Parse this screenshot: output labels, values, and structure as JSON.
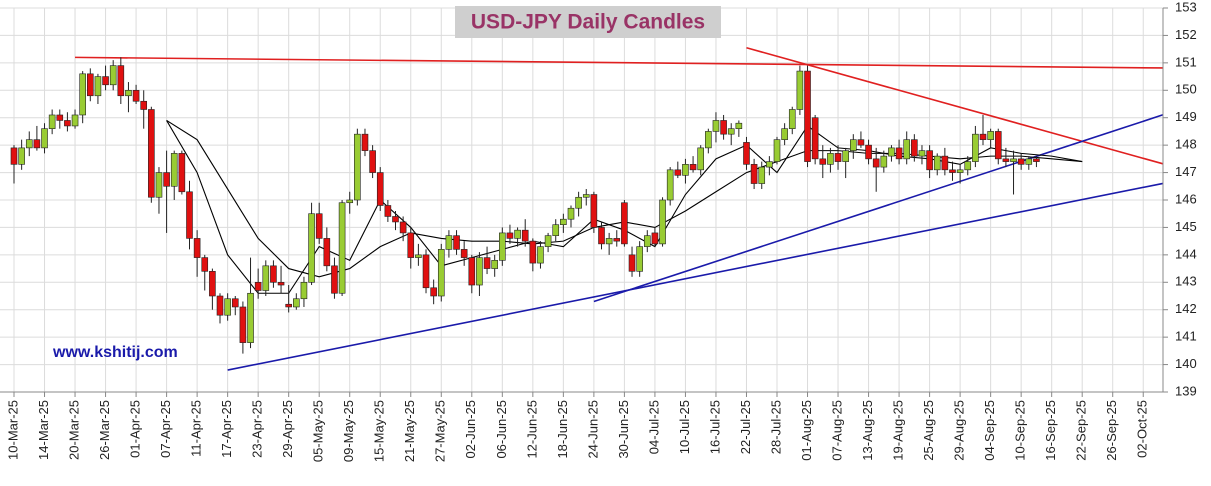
{
  "chart_data": {
    "type": "candlestick",
    "title": "USD-JPY Daily Candles",
    "annotation": "www.kshitij.com",
    "grid": true,
    "up_color": "#99cc33",
    "down_color": "#e01010",
    "ylim": [
      139,
      153
    ],
    "yticks": [
      139,
      140,
      141,
      142,
      143,
      144,
      145,
      146,
      147,
      148,
      149,
      150,
      151,
      152,
      153
    ],
    "categories": [
      "10-Mar-25",
      null,
      null,
      null,
      "14-Mar-25",
      null,
      null,
      null,
      "20-Mar-25",
      null,
      null,
      null,
      "26-Mar-25",
      null,
      null,
      null,
      "01-Apr-25",
      null,
      null,
      null,
      "07-Apr-25",
      null,
      null,
      null,
      "11-Apr-25",
      null,
      null,
      null,
      "17-Apr-25",
      null,
      null,
      null,
      "23-Apr-25",
      null,
      null,
      null,
      "29-Apr-25",
      null,
      null,
      null,
      "05-May-25",
      null,
      null,
      null,
      "09-May-25",
      null,
      null,
      null,
      "15-May-25",
      null,
      null,
      null,
      "21-May-25",
      null,
      null,
      null,
      "27-May-25",
      null,
      null,
      null,
      "02-Jun-25",
      null,
      null,
      null,
      "06-Jun-25",
      null,
      null,
      null,
      "12-Jun-25",
      null,
      null,
      null,
      "18-Jun-25",
      null,
      null,
      null,
      "24-Jun-25",
      null,
      null,
      null,
      "30-Jun-25",
      null,
      null,
      null,
      "04-Jul-25",
      null,
      null,
      null,
      "10-Jul-25",
      null,
      null,
      null,
      "16-Jul-25",
      null,
      null,
      null,
      "22-Jul-25",
      null,
      null,
      null,
      "28-Jul-25",
      null,
      null,
      null,
      "01-Aug-25",
      null,
      null,
      null,
      "07-Aug-25",
      null,
      null,
      null,
      "13-Aug-25",
      null,
      null,
      null,
      "19-Aug-25",
      null,
      null,
      null,
      "25-Aug-25",
      null,
      null,
      null,
      "29-Aug-25",
      null,
      null,
      null,
      "04-Sep-25",
      null,
      null,
      null,
      "10-Sep-25",
      null,
      null,
      null,
      "16-Sep-25",
      null,
      null,
      null,
      "22-Sep-25",
      null,
      null,
      null,
      "26-Sep-25",
      null,
      null,
      null,
      "02-Oct-25"
    ],
    "open": [
      147.9,
      147.3,
      147.9,
      148.2,
      147.9,
      148.6,
      149.1,
      148.9,
      148.7,
      149.1,
      150.6,
      149.8,
      150.5,
      150.2,
      150.9,
      149.8,
      150.0,
      149.6,
      149.3,
      146.1,
      147.0,
      146.5,
      147.7,
      146.3,
      144.6,
      143.9,
      143.4,
      142.5,
      141.8,
      142.4,
      142.1,
      140.8,
      143.0,
      142.7,
      143.6,
      143.0,
      142.2,
      142.1,
      142.4,
      143.0,
      145.5,
      144.6,
      143.6,
      142.6,
      145.9,
      146.0,
      148.4,
      147.8,
      147.0,
      145.8,
      145.4,
      145.2,
      144.8,
      143.9,
      144.0,
      142.8,
      142.5,
      144.2,
      144.7,
      144.2,
      143.9,
      142.9,
      143.9,
      143.5,
      143.8,
      144.8,
      144.6,
      144.9,
      144.5,
      143.7,
      144.3,
      144.7,
      145.1,
      145.3,
      145.7,
      146.1,
      146.2,
      145.0,
      144.4,
      144.6,
      145.9,
      144.0,
      143.4,
      144.3,
      144.8,
      144.4,
      146.0,
      147.1,
      146.9,
      147.3,
      147.1,
      147.9,
      148.5,
      148.9,
      148.4,
      148.6,
      148.1,
      147.3,
      146.6,
      147.2,
      147.4,
      148.2,
      148.6,
      149.3,
      150.7,
      149.0,
      147.5,
      147.3,
      147.7,
      147.4,
      147.8,
      148.2,
      148.0,
      147.5,
      147.2,
      147.6,
      147.9,
      147.5,
      148.2,
      147.6,
      147.8,
      147.1,
      147.6,
      147.1,
      147.0,
      147.1,
      147.4,
      148.4,
      148.2,
      148.5,
      147.5,
      147.4,
      147.5,
      147.3,
      147.5,
      null,
      null,
      null,
      null,
      null,
      null,
      null,
      null,
      null,
      null,
      null,
      null,
      null,
      null
    ],
    "high": [
      148.0,
      148.2,
      148.5,
      148.7,
      148.8,
      149.3,
      149.3,
      149.2,
      149.3,
      150.7,
      150.8,
      150.6,
      150.9,
      151.1,
      151.2,
      150.3,
      150.2,
      150.0,
      149.4,
      147.2,
      147.8,
      147.8,
      147.8,
      146.7,
      144.9,
      144.0,
      143.5,
      142.6,
      142.6,
      142.5,
      142.3,
      143.9,
      143.5,
      143.8,
      143.8,
      143.6,
      142.9,
      142.6,
      143.2,
      145.9,
      145.9,
      145.0,
      143.9,
      146.0,
      146.3,
      148.6,
      148.6,
      148.0,
      147.2,
      146.0,
      145.6,
      145.4,
      145.0,
      144.4,
      144.2,
      143.1,
      144.4,
      144.9,
      144.9,
      144.5,
      144.0,
      144.1,
      144.3,
      144.0,
      145.0,
      145.1,
      145.0,
      145.3,
      144.6,
      144.5,
      144.8,
      145.3,
      145.5,
      145.8,
      146.3,
      146.4,
      146.3,
      145.2,
      144.8,
      144.9,
      146.0,
      144.3,
      144.5,
      144.9,
      145.0,
      146.1,
      147.2,
      147.4,
      147.5,
      147.6,
      148.0,
      148.6,
      149.2,
      149.1,
      148.8,
      148.9,
      148.3,
      147.5,
      147.4,
      147.6,
      148.3,
      148.8,
      149.4,
      150.9,
      150.9,
      149.1,
      148.0,
      147.9,
      148.0,
      147.9,
      148.4,
      148.5,
      148.2,
      147.9,
      147.8,
      148.0,
      148.2,
      148.5,
      148.4,
      148.0,
      148.0,
      147.7,
      147.9,
      147.4,
      147.3,
      147.6,
      148.7,
      149.1,
      148.6,
      148.6,
      147.9,
      147.8,
      147.7,
      147.6,
      147.6,
      null,
      null,
      null,
      null,
      null,
      null,
      null,
      null,
      null,
      null,
      null,
      null,
      null,
      null
    ],
    "low": [
      146.6,
      147.1,
      147.6,
      147.8,
      147.7,
      148.4,
      148.6,
      148.5,
      148.6,
      148.8,
      149.6,
      149.5,
      150.0,
      150.0,
      149.5,
      149.2,
      149.5,
      148.6,
      145.9,
      145.5,
      144.8,
      146.0,
      146.2,
      144.2,
      143.2,
      142.7,
      142.0,
      141.5,
      141.6,
      141.8,
      140.4,
      140.6,
      142.4,
      142.5,
      142.8,
      142.6,
      141.9,
      142.0,
      142.1,
      142.9,
      144.4,
      143.4,
      142.4,
      142.5,
      145.5,
      145.8,
      147.6,
      146.8,
      145.6,
      145.2,
      144.9,
      144.5,
      143.5,
      143.6,
      142.6,
      142.2,
      142.3,
      143.9,
      144.0,
      143.6,
      142.6,
      142.5,
      143.3,
      143.2,
      143.6,
      144.4,
      144.3,
      144.3,
      143.4,
      143.5,
      144.1,
      144.5,
      144.8,
      145.0,
      145.4,
      145.8,
      144.8,
      144.2,
      144.0,
      144.3,
      144.3,
      143.2,
      143.2,
      144.1,
      144.3,
      144.3,
      145.8,
      146.8,
      146.6,
      147.0,
      146.9,
      147.7,
      148.1,
      148.2,
      148.0,
      148.3,
      147.1,
      146.4,
      146.4,
      146.9,
      147.3,
      148.0,
      148.4,
      149.1,
      147.2,
      147.3,
      146.8,
      147.0,
      147.1,
      146.8,
      147.5,
      147.9,
      147.3,
      146.3,
      147.0,
      147.4,
      147.3,
      147.3,
      147.4,
      147.3,
      146.8,
      146.9,
      146.9,
      146.7,
      146.6,
      146.9,
      147.2,
      148.0,
      147.9,
      147.3,
      147.2,
      146.2,
      147.1,
      147.1,
      147.2,
      null,
      null,
      null,
      null,
      null,
      null,
      null,
      null,
      null,
      null,
      null,
      null,
      null,
      null
    ],
    "close": [
      147.3,
      147.9,
      148.2,
      147.9,
      148.6,
      149.1,
      148.9,
      148.7,
      149.1,
      150.6,
      149.8,
      150.5,
      150.2,
      150.9,
      149.8,
      150.0,
      149.6,
      149.3,
      146.1,
      147.0,
      146.5,
      147.7,
      146.3,
      144.6,
      143.9,
      143.4,
      142.5,
      141.8,
      142.4,
      142.1,
      140.8,
      142.6,
      142.7,
      143.6,
      143.0,
      142.9,
      142.1,
      142.4,
      143.0,
      145.5,
      144.6,
      143.6,
      142.6,
      145.9,
      146.0,
      148.4,
      147.8,
      147.0,
      145.8,
      145.4,
      145.2,
      144.8,
      143.9,
      144.0,
      142.8,
      142.5,
      144.2,
      144.7,
      144.2,
      143.9,
      142.9,
      143.9,
      143.5,
      143.8,
      144.8,
      144.6,
      144.9,
      144.5,
      143.7,
      144.3,
      144.7,
      145.1,
      145.3,
      145.7,
      146.1,
      146.2,
      145.0,
      144.4,
      144.6,
      144.5,
      144.4,
      143.4,
      144.3,
      144.7,
      144.4,
      146.0,
      147.1,
      146.9,
      147.3,
      147.1,
      147.9,
      148.5,
      148.9,
      148.4,
      148.6,
      148.8,
      147.3,
      146.6,
      147.2,
      147.4,
      148.2,
      148.6,
      149.3,
      150.7,
      147.4,
      147.5,
      147.3,
      147.7,
      147.4,
      147.8,
      148.2,
      148.0,
      147.5,
      147.2,
      147.6,
      147.9,
      147.5,
      148.2,
      147.6,
      147.8,
      147.1,
      147.6,
      147.1,
      147.0,
      147.1,
      147.4,
      148.4,
      148.2,
      148.5,
      147.5,
      147.4,
      147.5,
      147.3,
      147.5,
      147.4,
      null,
      null,
      null,
      null,
      null,
      null,
      null,
      null,
      null,
      null,
      null,
      null,
      null,
      null
    ],
    "lines": [
      {
        "color": "#000000",
        "x": [
          "07-Apr-25",
          "11-Apr-25",
          "17-Apr-25",
          "23-Apr-25",
          "29-Apr-25",
          "05-May-25",
          "09-May-25",
          "15-May-25",
          "21-May-25",
          "27-May-25",
          "02-Jun-25",
          "06-Jun-25",
          "12-Jun-25",
          "18-Jun-25",
          "24-Jun-25",
          "30-Jun-25",
          "04-Jul-25",
          "10-Jul-25",
          "16-Jul-25",
          "22-Jul-25",
          "28-Jul-25",
          "01-Aug-25",
          "07-Aug-25",
          "13-Aug-25",
          "19-Aug-25",
          "25-Aug-25",
          "29-Aug-25",
          "04-Sep-25",
          "10-Sep-25",
          "16-Sep-25",
          "22-Sep-25"
        ],
        "values": [
          148.9,
          148.2,
          146.4,
          144.6,
          143.5,
          143.2,
          143.5,
          144.3,
          144.8,
          144.6,
          144.5,
          144.5,
          144.4,
          144.5,
          145.0,
          145.2,
          145.0,
          145.6,
          146.3,
          147.0,
          147.4,
          147.8,
          147.8,
          147.7,
          147.7,
          147.6,
          147.5,
          147.6,
          147.6,
          147.5,
          147.4
        ]
      },
      {
        "color": "#000000",
        "x": [
          "07-Apr-25",
          "11-Apr-25",
          "17-Apr-25",
          "23-Apr-25",
          "29-Apr-25",
          "05-May-25",
          "09-May-25",
          "15-May-25",
          "21-May-25",
          "27-May-25",
          "02-Jun-25",
          "06-Jun-25",
          "12-Jun-25",
          "18-Jun-25",
          "24-Jun-25",
          "30-Jun-25",
          "04-Jul-25",
          "10-Jul-25",
          "16-Jul-25",
          "22-Jul-25",
          "28-Jul-25",
          "01-Aug-25",
          "07-Aug-25",
          "13-Aug-25",
          "19-Aug-25",
          "25-Aug-25",
          "29-Aug-25",
          "04-Sep-25",
          "10-Sep-25",
          "16-Sep-25",
          "22-Sep-25"
        ],
        "values": [
          148.9,
          147.0,
          144.0,
          142.6,
          142.6,
          144.3,
          143.8,
          146.0,
          145.0,
          143.6,
          143.9,
          144.2,
          144.5,
          144.3,
          145.3,
          144.9,
          144.3,
          146.2,
          147.5,
          148.0,
          147.0,
          148.7,
          147.9,
          147.8,
          147.6,
          147.5,
          147.3,
          147.9,
          147.7,
          147.6,
          147.4
        ]
      }
    ],
    "trendlines": [
      {
        "color": "#e02020",
        "x": [
          "20-Mar-25",
          "02-Oct-25"
        ],
        "values": [
          151.2,
          150.82
        ],
        "extend": true
      },
      {
        "color": "#e02020",
        "x": [
          "22-Jul-25",
          "02-Oct-25"
        ],
        "values": [
          151.55,
          147.52
        ],
        "extend": true
      },
      {
        "color": "#1a1aaa",
        "x": [
          "17-Apr-25",
          "02-Oct-25"
        ],
        "values": [
          139.8,
          146.46
        ],
        "extend": true
      },
      {
        "color": "#1a1aaa",
        "x": [
          "24-Jun-25",
          "02-Oct-25"
        ],
        "values": [
          142.3,
          148.87
        ],
        "extend": true
      }
    ]
  }
}
